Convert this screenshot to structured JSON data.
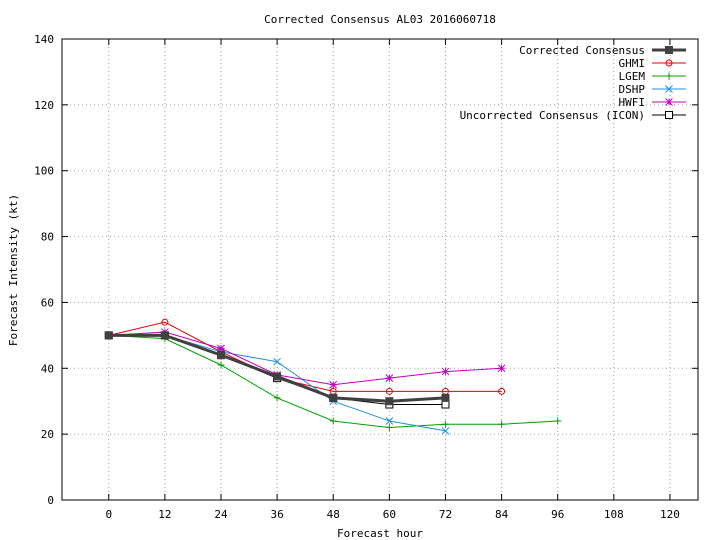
{
  "chart_data": {
    "type": "line",
    "title": "Corrected Consensus  AL03 2016060718",
    "xlabel": "Forecast hour",
    "ylabel": "Forecast Intensity (kt)",
    "xlim": [
      -10,
      126
    ],
    "ylim": [
      0,
      140
    ],
    "xticks": [
      0,
      12,
      24,
      36,
      48,
      60,
      72,
      84,
      96,
      108,
      120
    ],
    "yticks": [
      0,
      20,
      40,
      60,
      80,
      100,
      120,
      140
    ],
    "grid": true,
    "legend_position": "top-right",
    "series": [
      {
        "name": "Corrected Consensus",
        "color": "#404040",
        "marker": "filled-square",
        "width": 3,
        "x": [
          0,
          12,
          24,
          36,
          48,
          60,
          72
        ],
        "y": [
          50,
          50,
          44,
          37.5,
          31,
          30,
          31
        ]
      },
      {
        "name": "GHMI",
        "color": "#e00000",
        "marker": "circle",
        "width": 1,
        "x": [
          0,
          12,
          24,
          36,
          48,
          60,
          72,
          84
        ],
        "y": [
          50,
          54,
          45,
          37,
          33,
          33,
          33,
          33
        ]
      },
      {
        "name": "LGEM",
        "color": "#00a000",
        "marker": "plus",
        "width": 1,
        "x": [
          0,
          12,
          24,
          36,
          48,
          60,
          72,
          84,
          96
        ],
        "y": [
          50,
          49,
          41,
          31,
          24,
          22,
          23,
          23,
          24
        ]
      },
      {
        "name": "DSHP",
        "color": "#2090e0",
        "marker": "x",
        "width": 1,
        "x": [
          0,
          12,
          24,
          36,
          48,
          60,
          72
        ],
        "y": [
          50,
          50,
          45,
          42,
          30,
          24,
          21
        ]
      },
      {
        "name": "HWFI",
        "color": "#c000c0",
        "marker": "star",
        "width": 1,
        "x": [
          0,
          12,
          24,
          36,
          48,
          60,
          72,
          84
        ],
        "y": [
          50,
          51,
          46,
          38,
          35,
          37,
          39,
          40
        ]
      },
      {
        "name": "Uncorrected Consensus (ICON)",
        "color": "#000000",
        "marker": "open-square",
        "width": 1,
        "x": [
          0,
          12,
          24,
          36,
          48,
          60,
          72
        ],
        "y": [
          50,
          50,
          44,
          37,
          31,
          29,
          29
        ]
      }
    ]
  }
}
